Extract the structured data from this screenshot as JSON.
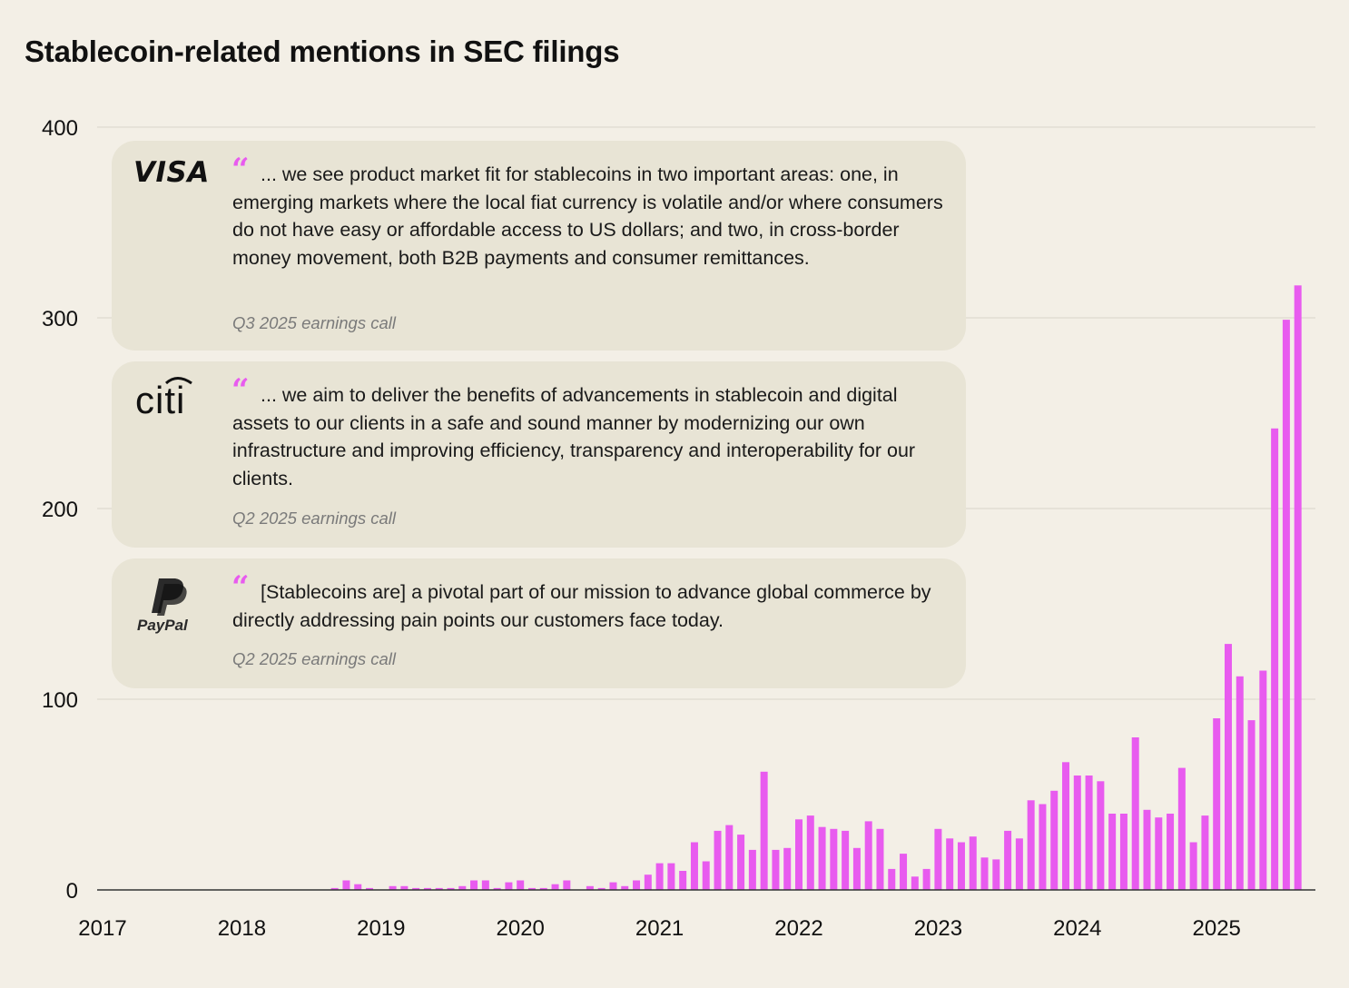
{
  "chart_data": {
    "type": "bar",
    "title": "Stablecoin-related mentions in SEC filings",
    "xlabel": "",
    "ylabel": "",
    "x_tick_labels": [
      "2017",
      "2018",
      "2019",
      "2020",
      "2021",
      "2022",
      "2023",
      "2024",
      "2025"
    ],
    "y_tick_labels": [
      "0",
      "100",
      "200",
      "300",
      "400"
    ],
    "ylim": [
      0,
      400
    ],
    "grid": "horizontal",
    "color": "#E85BEF",
    "x_start": "2017-01",
    "x_end": "2025-09",
    "categories": [
      "2017-01",
      "2017-02",
      "2017-03",
      "2017-04",
      "2017-05",
      "2017-06",
      "2017-07",
      "2017-08",
      "2017-09",
      "2017-10",
      "2017-11",
      "2017-12",
      "2018-01",
      "2018-02",
      "2018-03",
      "2018-04",
      "2018-05",
      "2018-06",
      "2018-07",
      "2018-08",
      "2018-09",
      "2018-10",
      "2018-11",
      "2018-12",
      "2019-01",
      "2019-02",
      "2019-03",
      "2019-04",
      "2019-05",
      "2019-06",
      "2019-07",
      "2019-08",
      "2019-09",
      "2019-10",
      "2019-11",
      "2019-12",
      "2020-01",
      "2020-02",
      "2020-03",
      "2020-04",
      "2020-05",
      "2020-06",
      "2020-07",
      "2020-08",
      "2020-09",
      "2020-10",
      "2020-11",
      "2020-12",
      "2021-01",
      "2021-02",
      "2021-03",
      "2021-04",
      "2021-05",
      "2021-06",
      "2021-07",
      "2021-08",
      "2021-09",
      "2021-10",
      "2021-11",
      "2021-12",
      "2022-01",
      "2022-02",
      "2022-03",
      "2022-04",
      "2022-05",
      "2022-06",
      "2022-07",
      "2022-08",
      "2022-09",
      "2022-10",
      "2022-11",
      "2022-12",
      "2023-01",
      "2023-02",
      "2023-03",
      "2023-04",
      "2023-05",
      "2023-06",
      "2023-07",
      "2023-08",
      "2023-09",
      "2023-10",
      "2023-11",
      "2023-12",
      "2024-01",
      "2024-02",
      "2024-03",
      "2024-04",
      "2024-05",
      "2024-06",
      "2024-07",
      "2024-08",
      "2024-09",
      "2024-10",
      "2024-11",
      "2024-12",
      "2025-01",
      "2025-02",
      "2025-03",
      "2025-04",
      "2025-05",
      "2025-06",
      "2025-07",
      "2025-08",
      "2025-09"
    ],
    "values": [
      0,
      0,
      0,
      0,
      0,
      0,
      0,
      0,
      0,
      0,
      0,
      0,
      0,
      0,
      0,
      0,
      0,
      0,
      0,
      0,
      1,
      5,
      3,
      1,
      0,
      2,
      2,
      1,
      1,
      1,
      1,
      2,
      5,
      5,
      1,
      4,
      5,
      1,
      1,
      3,
      5,
      0,
      2,
      1,
      4,
      2,
      5,
      8,
      14,
      14,
      10,
      25,
      15,
      31,
      34,
      29,
      21,
      62,
      21,
      22,
      37,
      39,
      33,
      32,
      31,
      22,
      36,
      32,
      11,
      19,
      7,
      11,
      32,
      27,
      25,
      28,
      17,
      16,
      31,
      27,
      47,
      45,
      52,
      67,
      60,
      60,
      57,
      40,
      40,
      80,
      42,
      38,
      40,
      64,
      25,
      39,
      90,
      129,
      112,
      89,
      115,
      242,
      299,
      317,
      0
    ]
  },
  "quotes": [
    {
      "company": "VISA",
      "text": "... we see product market fit for stablecoins in two important areas: one, in emerging markets where the local fiat currency is volatile and/or where consumers do not have easy or affordable access to US dollars; and two, in cross-border money movement, both B2B payments and consumer remittances.",
      "source": "Q3 2025 earnings call"
    },
    {
      "company": "citi",
      "text": "... we aim to deliver the benefits of advancements in stablecoin and digital assets to our clients in a safe and sound manner by modernizing our own infrastructure and improving efficiency, transparency and interoperability for our clients.",
      "source": "Q2 2025 earnings call"
    },
    {
      "company": "PayPal",
      "text": "[Stablecoins are] a pivotal part of our mission to advance global commerce by directly addressing pain points our customers face today.",
      "source": "Q2 2025 earnings call"
    }
  ],
  "quote_mark": "“"
}
